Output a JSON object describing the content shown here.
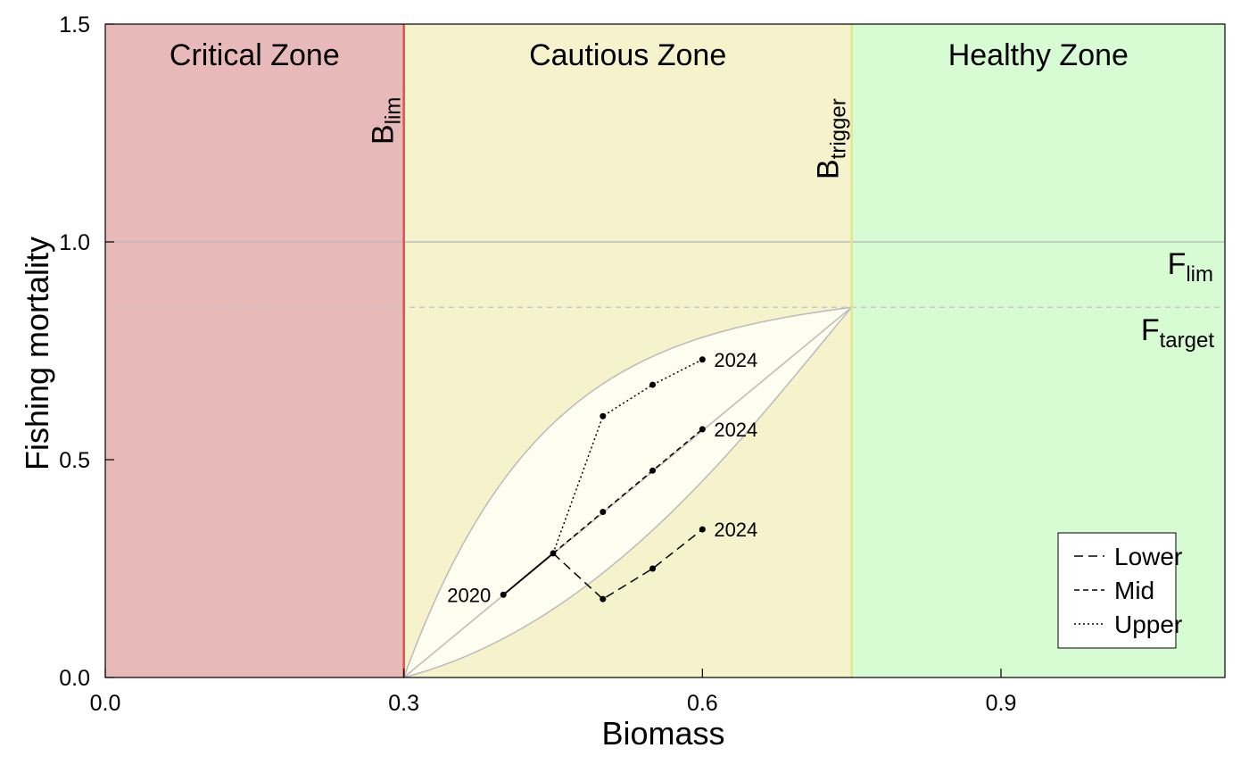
{
  "chart_data": {
    "type": "line",
    "title": "",
    "xlabel": "Biomass",
    "ylabel": "Fishing mortality",
    "xlim": [
      0.0,
      1.125
    ],
    "ylim": [
      0.0,
      1.5
    ],
    "x_ticks": [
      "0.0",
      "0.3",
      "0.6",
      "0.9"
    ],
    "x_tick_values": [
      0.0,
      0.3,
      0.6,
      0.9
    ],
    "y_ticks": [
      "0.0",
      "0.5",
      "1.0",
      "1.5"
    ],
    "y_tick_values": [
      0.0,
      0.5,
      1.0,
      1.5
    ],
    "grid": false,
    "zones": [
      {
        "label": "Critical Zone",
        "x_from": 0.0,
        "x_to": 0.3,
        "color": "#e8b9b9"
      },
      {
        "label": "Cautious Zone",
        "x_from": 0.3,
        "x_to": 0.75,
        "color": "#f6f2cc"
      },
      {
        "label": "Healthy Zone",
        "x_from": 0.75,
        "x_to": 1.125,
        "color": "#d7fcd4"
      }
    ],
    "reference_lines": {
      "b_lim": {
        "main": "B",
        "sub": "lim",
        "value": 0.3,
        "color": "#d9534f"
      },
      "b_trigger": {
        "main": "B",
        "sub": "trigger",
        "value": 0.75,
        "color": "#e6e68a"
      },
      "f_lim": {
        "main": "F",
        "sub": "lim",
        "value": 1.0,
        "color": "#bbbbbb"
      },
      "f_target": {
        "main": "F",
        "sub": "target",
        "value": 0.85,
        "color": "#c8c8c8"
      }
    },
    "envelope": {
      "fill": "#fdfdf0",
      "stroke": "#bbbbbb",
      "start": [
        0.3,
        0.0
      ],
      "end": [
        0.75,
        0.85
      ]
    },
    "history": {
      "x": [
        0.4,
        0.45
      ],
      "y": [
        0.19,
        0.285
      ],
      "start_year": "2020"
    },
    "series": [
      {
        "name": "Lower",
        "x": [
          0.45,
          0.5,
          0.55,
          0.6
        ],
        "y": [
          0.285,
          0.18,
          0.25,
          0.34
        ],
        "end_year": "2024",
        "dash": "10 6"
      },
      {
        "name": "Mid",
        "x": [
          0.45,
          0.5,
          0.55,
          0.6
        ],
        "y": [
          0.285,
          0.38,
          0.475,
          0.57
        ],
        "end_year": "2024",
        "dash": "6 4"
      },
      {
        "name": "Upper",
        "x": [
          0.45,
          0.5,
          0.55,
          0.6
        ],
        "y": [
          0.285,
          0.6,
          0.672,
          0.73
        ],
        "end_year": "2024",
        "dash": "2 3"
      }
    ],
    "legend": {
      "position": "bottom-right",
      "entries": [
        "Lower",
        "Mid",
        "Upper"
      ]
    }
  }
}
